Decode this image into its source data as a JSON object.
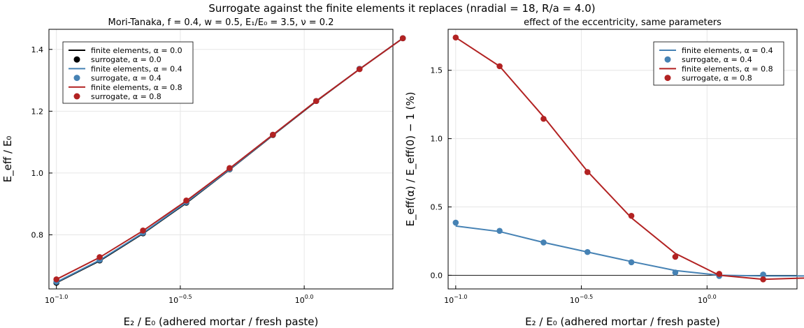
{
  "suptitle": "Surrogate against the finite elements it replaces (nradial = 18, R/a = 4.0)",
  "chart_data": [
    {
      "type": "line",
      "title": "Mori-Tanaka, f = 0.4, w = 0.5, E₁/E₀ = 3.5, ν = 0.2",
      "xlabel": "E₂ / E₀   (adhered mortar / fresh paste)",
      "ylabel": "E_eff / E₀",
      "xscale": "log10",
      "xlim": [
        0.0933,
        2.28
      ],
      "ylim": [
        0.625,
        1.465
      ],
      "xticks": [
        {
          "label": "10",
          "exp": "−1.0",
          "value": 0.1
        },
        {
          "label": "10",
          "exp": "−0.5",
          "value": 0.3162
        },
        {
          "label": "10",
          "exp": "0.0",
          "value": 1.0
        }
      ],
      "yticks": [
        0.8,
        1.0,
        1.2,
        1.4
      ],
      "ytick_labels": [
        "0.8",
        "1.0",
        "1.2",
        "1.4"
      ],
      "grid": true,
      "legend_position": "top-left",
      "legend": [
        {
          "label": "finite elements, α = 0.0",
          "kind": "line",
          "color": "#000000"
        },
        {
          "label": "surrogate, α = 0.0",
          "kind": "marker",
          "color": "#000000"
        },
        {
          "label": "finite elements, α = 0.4",
          "kind": "line",
          "color": "#4682b4"
        },
        {
          "label": "surrogate, α = 0.4",
          "kind": "marker",
          "color": "#4682b4"
        },
        {
          "label": "finite elements, α = 0.8",
          "kind": "line",
          "color": "#b22222"
        },
        {
          "label": "surrogate, α = 0.8",
          "kind": "marker",
          "color": "#b22222"
        }
      ],
      "x": [
        0.1,
        0.1495,
        0.2236,
        0.3344,
        0.5,
        0.7477,
        1.118,
        1.672,
        2.5
      ],
      "series": [
        {
          "name": "finite elements, α = 0.0",
          "kind": "line",
          "color": "#000000",
          "values": [
            0.645,
            0.716,
            0.804,
            0.903,
            1.011,
            1.122,
            1.232,
            1.336,
            1.436
          ]
        },
        {
          "name": "surrogate, α = 0.0",
          "kind": "marker",
          "color": "#000000",
          "values": [
            0.645,
            0.717,
            0.805,
            0.904,
            1.012,
            1.123,
            1.233,
            1.337,
            1.436
          ]
        },
        {
          "name": "finite elements, α = 0.4",
          "kind": "line",
          "color": "#4682b4",
          "values": [
            0.647,
            0.718,
            0.806,
            0.905,
            1.012,
            1.123,
            1.233,
            1.336,
            1.436
          ]
        },
        {
          "name": "surrogate, α = 0.4",
          "kind": "marker",
          "color": "#4682b4",
          "values": [
            0.648,
            0.719,
            0.807,
            0.906,
            1.013,
            1.124,
            1.233,
            1.337,
            1.436
          ]
        },
        {
          "name": "finite elements, α = 0.8",
          "kind": "line",
          "color": "#b22222",
          "values": [
            0.656,
            0.727,
            0.813,
            0.91,
            1.015,
            1.124,
            1.233,
            1.336,
            1.436
          ]
        },
        {
          "name": "surrogate, α = 0.8",
          "kind": "marker",
          "color": "#b22222",
          "values": [
            0.656,
            0.728,
            0.814,
            0.911,
            1.016,
            1.124,
            1.233,
            1.336,
            1.436
          ]
        }
      ]
    },
    {
      "type": "line",
      "title": "effect of the eccentricity, same parameters",
      "xlabel": "E₂ / E₀   (adhered mortar / fresh paste)",
      "ylabel": "E_eff(α) / E_eff(0) − 1   (%)",
      "xscale": "log10",
      "xlim": [
        0.0933,
        2.28
      ],
      "ylim": [
        -0.1,
        1.8
      ],
      "xticks": [
        {
          "label": "10",
          "exp": "−1.0",
          "value": 0.1
        },
        {
          "label": "10",
          "exp": "−0.5",
          "value": 0.3162
        },
        {
          "label": "10",
          "exp": "0.0",
          "value": 1.0
        }
      ],
      "yticks": [
        0.0,
        0.5,
        1.0,
        1.5
      ],
      "ytick_labels": [
        "0.0",
        "0.5",
        "1.0",
        "1.5"
      ],
      "grid": true,
      "zero_line": true,
      "legend_position": "top-right",
      "legend": [
        {
          "label": "finite elements, α = 0.4",
          "kind": "line",
          "color": "#4682b4"
        },
        {
          "label": "surrogate, α = 0.4",
          "kind": "marker",
          "color": "#4682b4"
        },
        {
          "label": "finite elements, α = 0.8",
          "kind": "line",
          "color": "#b22222"
        },
        {
          "label": "surrogate, α = 0.8",
          "kind": "marker",
          "color": "#b22222"
        }
      ],
      "x": [
        0.1,
        0.1495,
        0.2236,
        0.3344,
        0.5,
        0.7477,
        1.118,
        1.672,
        2.5
      ],
      "series": [
        {
          "name": "finite elements, α = 0.4",
          "kind": "line",
          "color": "#4682b4",
          "values": [
            0.36,
            0.32,
            0.24,
            0.17,
            0.1,
            0.035,
            0.0,
            -0.005,
            -0.005
          ]
        },
        {
          "name": "surrogate, α = 0.4",
          "kind": "marker",
          "color": "#4682b4",
          "values": [
            0.385,
            0.325,
            0.24,
            0.17,
            0.095,
            0.02,
            -0.005,
            0.005,
            0.01
          ]
        },
        {
          "name": "finite elements, α = 0.8",
          "kind": "line",
          "color": "#b22222",
          "values": [
            1.74,
            1.53,
            1.16,
            0.76,
            0.42,
            0.16,
            0.0,
            -0.03,
            -0.02
          ]
        },
        {
          "name": "surrogate, α = 0.8",
          "kind": "marker",
          "color": "#b22222",
          "values": [
            1.74,
            1.53,
            1.145,
            0.755,
            0.435,
            0.135,
            0.01,
            -0.03,
            -0.025
          ]
        }
      ]
    }
  ]
}
